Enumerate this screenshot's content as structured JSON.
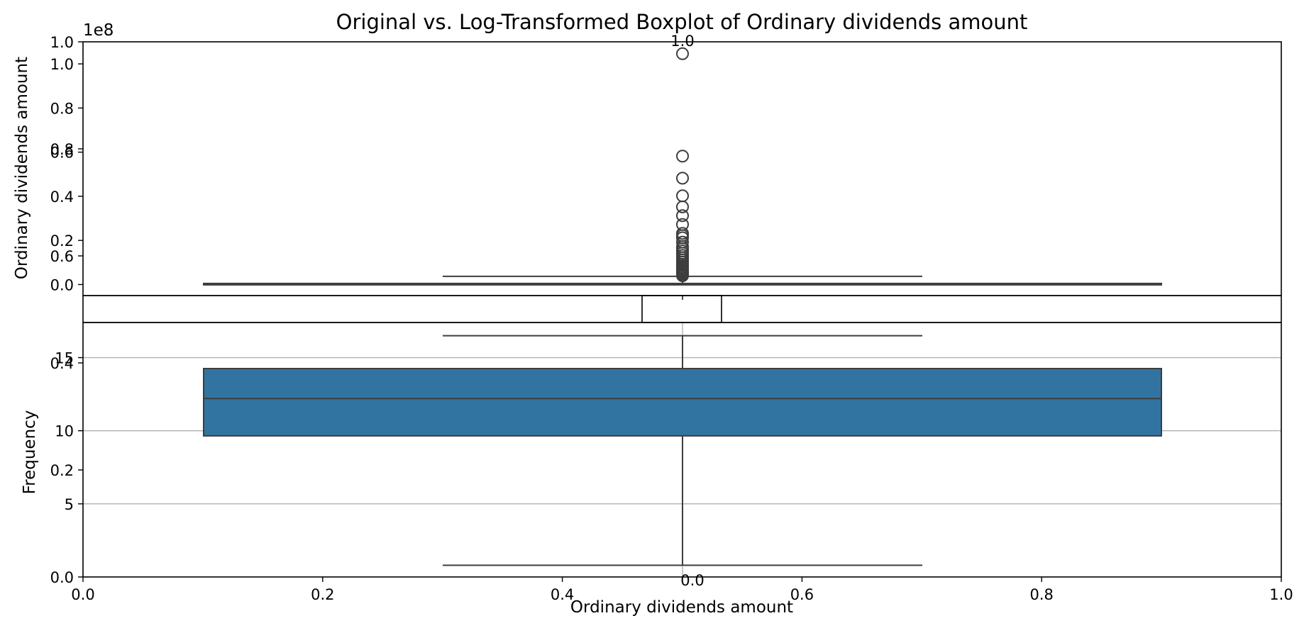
{
  "chart_data": [
    {
      "type": "box",
      "title": "Original vs. Log-Transformed Boxplot of Ordinary dividends amount",
      "ylabel": "Ordinary dividends amount",
      "y_offset_label": "1e8",
      "ylim": [
        -0.05,
        1.1
      ],
      "y_ticks": [
        {
          "value": 0.0,
          "label": "0.0"
        },
        {
          "value": 0.2,
          "label": "0.2"
        },
        {
          "value": 0.4,
          "label": "0.4"
        },
        {
          "value": 0.6,
          "label": "0.6"
        },
        {
          "value": 0.8,
          "label": "0.8"
        },
        {
          "value": 1.0,
          "label": "1.0"
        }
      ],
      "box": {
        "q1": 0.0,
        "median": 0.001,
        "q3": 0.005,
        "whisker_low": 0.0,
        "whisker_high": 0.037,
        "color": "#1f77b4"
      },
      "outliers": [
        1.046,
        0.582,
        0.482,
        0.402,
        0.352,
        0.312,
        0.272,
        0.232,
        0.222,
        0.212,
        0.192,
        0.172,
        0.162,
        0.152,
        0.142,
        0.132,
        0.122,
        0.112,
        0.102,
        0.092,
        0.085,
        0.078,
        0.072,
        0.066,
        0.06,
        0.055,
        0.05,
        0.045,
        0.04
      ]
    },
    {
      "type": "box",
      "xlabel": "Ordinary dividends amount",
      "ylabel": "Frequency",
      "ylim": [
        0,
        17.4
      ],
      "grid": true,
      "y_ticks": [
        {
          "value": 0,
          "label": "0.0"
        },
        {
          "value": 5,
          "label": "5"
        },
        {
          "value": 10,
          "label": "10"
        },
        {
          "value": 15,
          "label": "15"
        }
      ],
      "box": {
        "q1": 9.65,
        "median": 12.2,
        "q3": 14.25,
        "whisker_low": 0.8,
        "whisker_high": 16.5,
        "color": "#3274a1"
      }
    },
    {
      "type": "empty-axes",
      "xlim": [
        0,
        1
      ],
      "ylim": [
        0,
        1
      ],
      "x_ticks": [
        "0.0",
        "0.2",
        "0.4",
        "0.6",
        "0.8",
        "1.0"
      ],
      "y_ticks": [
        "0.0",
        "0.2",
        "0.4",
        "0.6",
        "0.8",
        "1.0"
      ],
      "inset_x_ticks": [
        "0.0"
      ],
      "inset_y_ticks": [
        "0.0",
        "1.0"
      ]
    }
  ]
}
